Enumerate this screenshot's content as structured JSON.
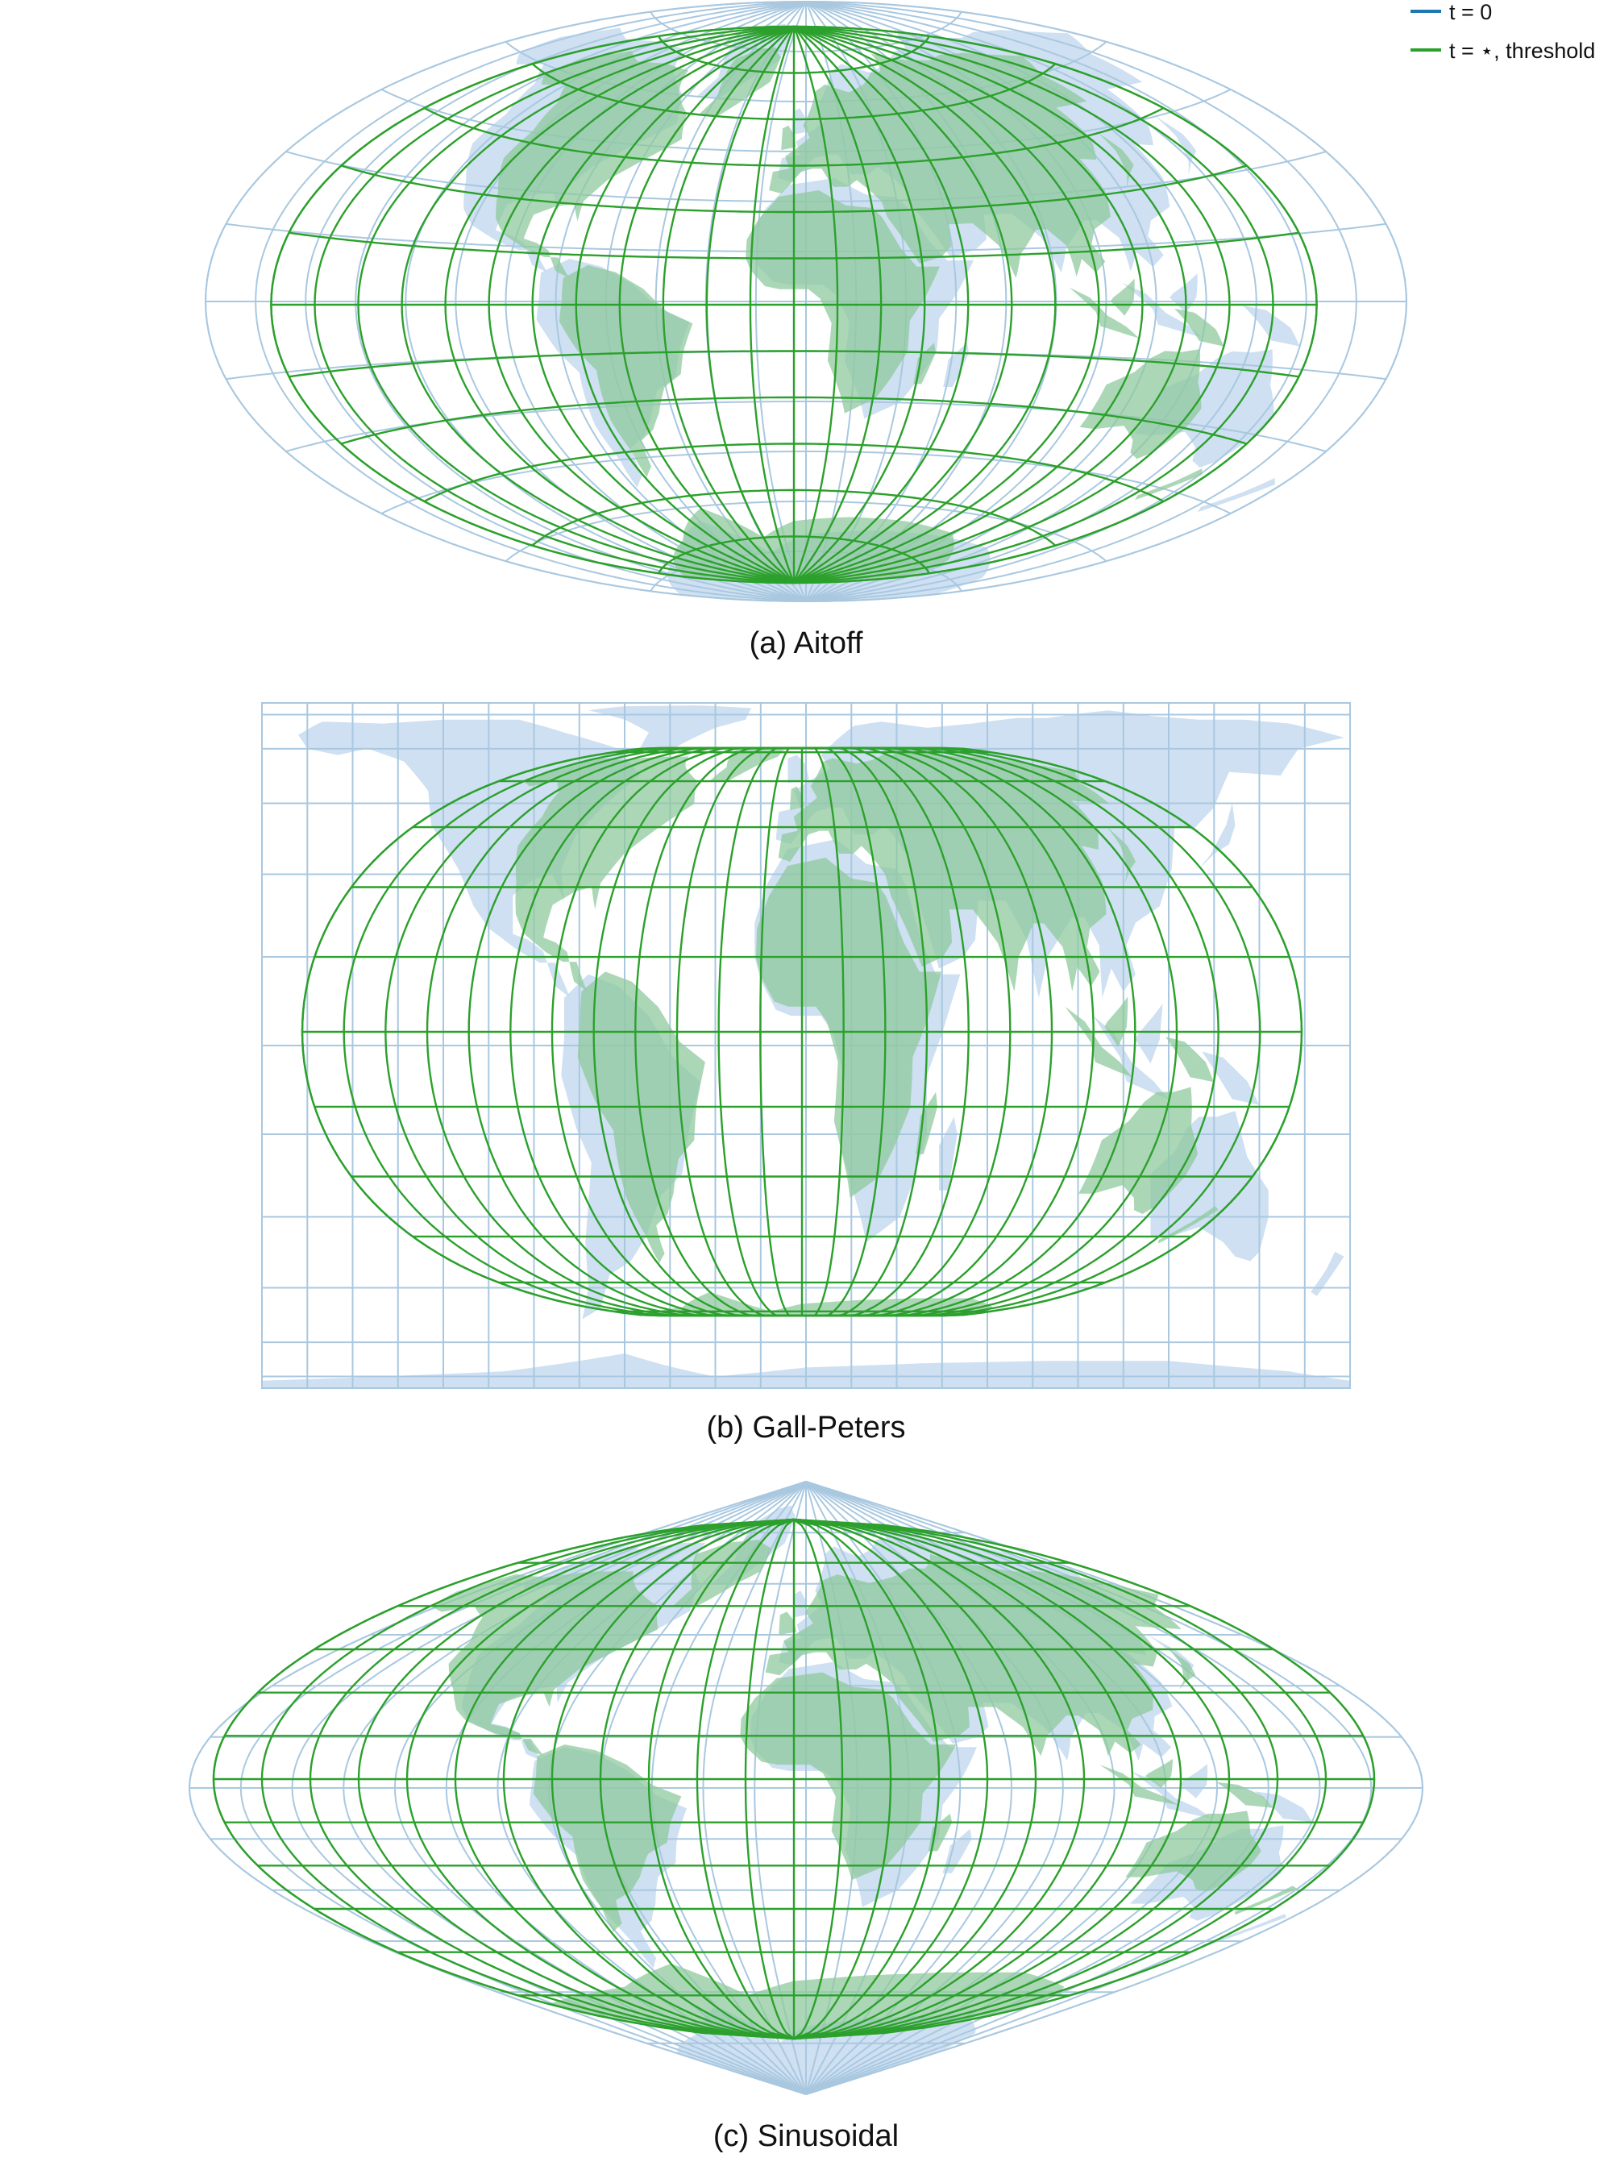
{
  "legend": {
    "items": [
      {
        "label": "t = 0",
        "color": "#1f77b4"
      },
      {
        "label": "t = ⋆, threshold",
        "color": "#2ca02c"
      }
    ]
  },
  "colors": {
    "base_grid": "#a9c8e0",
    "base_land": "#c6dbee",
    "warped_grid": "#2ca02c",
    "warped_land": "#8fc99e"
  },
  "panels": [
    {
      "key": "aitoff",
      "caption": "(a) Aitoff",
      "projection": "Aitoff"
    },
    {
      "key": "gall",
      "caption": "(b) Gall-Peters",
      "projection": "Gall-Peters"
    },
    {
      "key": "sinus",
      "caption": "(c) Sinusoidal",
      "projection": "Sinusoidal"
    }
  ],
  "graticule": {
    "meridian_step_deg": 15,
    "parallel_step_deg": 15,
    "lon_range": [
      -180,
      180
    ],
    "lat_range": [
      -90,
      90
    ]
  }
}
